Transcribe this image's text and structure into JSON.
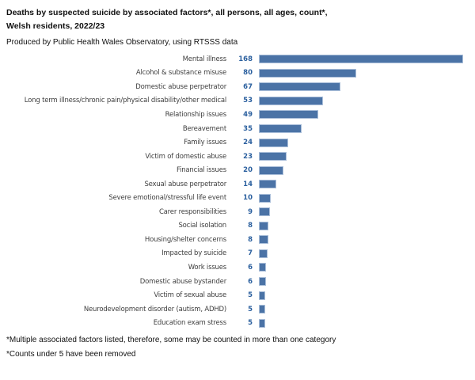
{
  "header": {
    "title_line1": "Deaths by suspected suicide by associated factors*, all persons, all ages, count*,",
    "title_line2": "Welsh residents, 2022/23",
    "subtitle": "Produced by Public Health Wales Observatory, using RTSSS data"
  },
  "chart_data": {
    "type": "bar",
    "orientation": "horizontal",
    "title": "Deaths by suspected suicide by associated factors, all persons, all ages, count, Welsh residents, 2022/23",
    "categories": [
      "Mental illness",
      "Alcohol & substance misuse",
      "Domestic abuse perpetrator",
      "Long term illness/chronic pain/physical disability/other medical",
      "Relationship issues",
      "Bereavement",
      "Family issues",
      "Victim of domestic abuse",
      "Financial issues",
      "Sexual abuse perpetrator",
      "Severe emotional/stressful life event",
      "Carer responsibilities",
      "Social isolation",
      "Housing/shelter concerns",
      "Impacted by suicide",
      "Work issues",
      "Domestic abuse bystander",
      "Victim of sexual abuse",
      "Neurodevelopment disorder (autism, ADHD)",
      "Education exam stress"
    ],
    "values": [
      168,
      80,
      67,
      53,
      49,
      35,
      24,
      23,
      20,
      14,
      10,
      9,
      8,
      8,
      7,
      6,
      6,
      5,
      5,
      5
    ],
    "xlabel": "",
    "ylabel": "",
    "xlim": [
      0,
      168
    ],
    "grid": false,
    "legend": false,
    "value_labels_position": "left-of-bars",
    "bar_color": "#4b73a6",
    "bar_border_color": "#a9bed9",
    "value_label_color": "#2a5f9e",
    "category_label_color": "#3f3f3f"
  },
  "footnotes": [
    "*Multiple associated factors listed, therefore, some may be counted in more than one category",
    "*Counts under 5 have been removed"
  ]
}
